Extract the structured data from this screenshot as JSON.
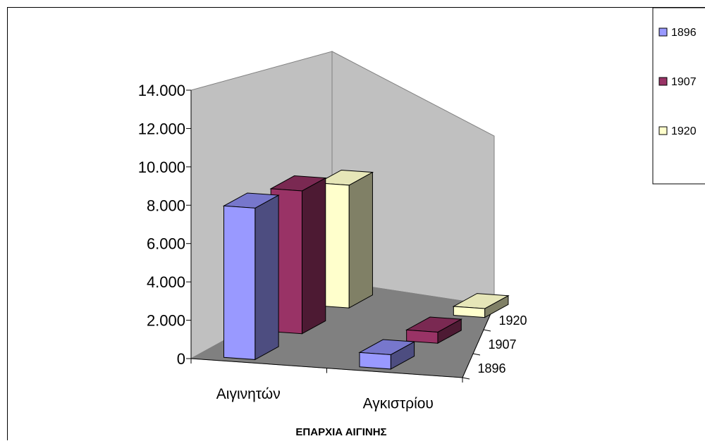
{
  "chart_data": {
    "type": "bar",
    "title": "",
    "xlabel": "ΕΠΑΡΧΙΑ ΑΙΓΙΝΗΣ",
    "ylabel": "",
    "categories": [
      "Αιγινητών",
      "Αγκιστρίου"
    ],
    "series": [
      {
        "name": "1896",
        "values": [
          7900,
          750
        ]
      },
      {
        "name": "1907",
        "values": [
          7450,
          580
        ]
      },
      {
        "name": "1920",
        "values": [
          6400,
          460
        ]
      }
    ],
    "ylim": [
      0,
      14000
    ],
    "yticks": [
      "0",
      "2.000",
      "4.000",
      "6.000",
      "8.000",
      "10.000",
      "12.000",
      "14.000"
    ],
    "depth_labels": [
      "1896",
      "1907",
      "1920"
    ],
    "legend": {
      "position": "top-right",
      "entries": [
        "1896",
        "1907",
        "1920"
      ]
    },
    "colors": {
      "1896": {
        "front": "#9999ff",
        "side": "#4d4d80",
        "top": "#7777cc"
      },
      "1907": {
        "front": "#993366",
        "side": "#4d1a33",
        "top": "#7a2952"
      },
      "1920": {
        "front": "#ffffcc",
        "side": "#808066",
        "top": "#e6e6b8"
      },
      "back_wall": "#c0c0c0",
      "floor": "#808080"
    },
    "grid": false
  }
}
